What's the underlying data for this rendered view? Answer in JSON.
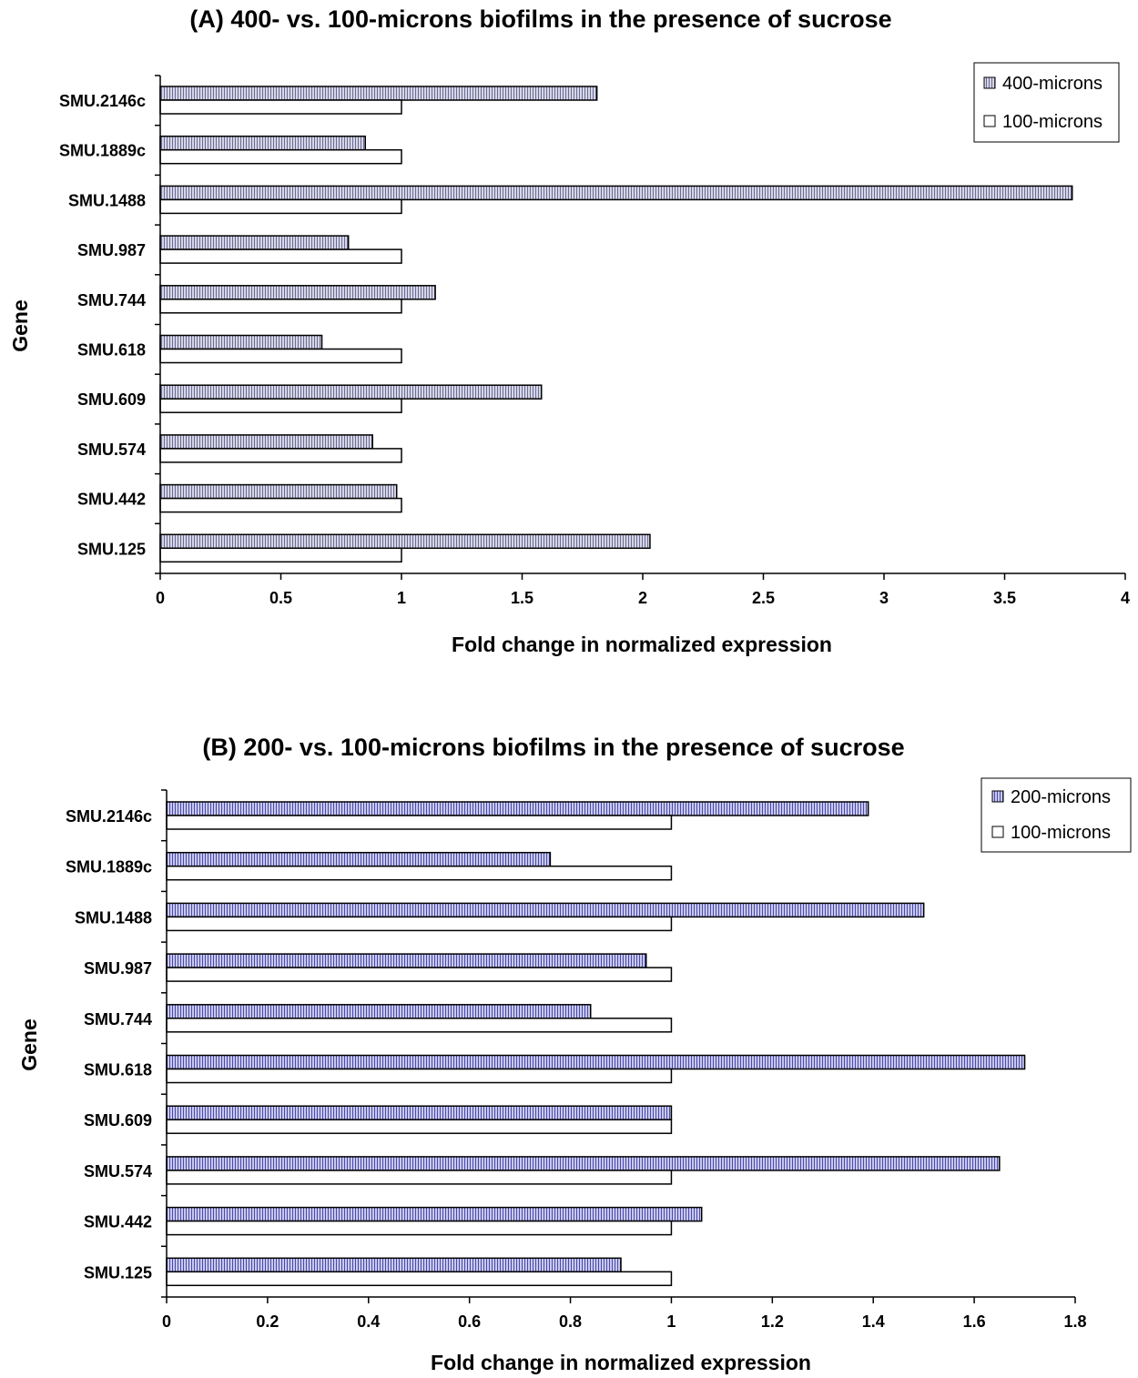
{
  "chart_data": [
    {
      "type": "bar",
      "orientation": "horizontal",
      "title": "(A) 400- vs. 100-microns biofilms in the presence of sucrose",
      "xlabel": "Fold change in normalized expression",
      "ylabel": "Gene",
      "xlim": [
        0,
        4
      ],
      "xticks": [
        "0",
        "0.5",
        "1",
        "1.5",
        "2",
        "2.5",
        "3",
        "3.5",
        "4"
      ],
      "grid": false,
      "legend_position": "top-right",
      "categories": [
        "SMU.2146c",
        "SMU.1889c",
        "SMU.1488",
        "SMU.987",
        "SMU.744",
        "SMU.618",
        "SMU.609",
        "SMU.574",
        "SMU.442",
        "SMU.125"
      ],
      "series": [
        {
          "name": "400-microns",
          "color": "#8a8ab0",
          "values": [
            1.81,
            0.85,
            3.78,
            0.78,
            1.14,
            0.67,
            1.58,
            0.88,
            0.98,
            2.03
          ]
        },
        {
          "name": "100-microns",
          "color": "#ffffff",
          "values": [
            1,
            1,
            1,
            1,
            1,
            1,
            1,
            1,
            1,
            1
          ]
        }
      ]
    },
    {
      "type": "bar",
      "orientation": "horizontal",
      "title": "(B) 200- vs. 100-microns biofilms in the presence of sucrose",
      "xlabel": "Fold change in normalized expression",
      "ylabel": "Gene",
      "xlim": [
        0,
        1.8
      ],
      "xticks": [
        "0",
        "0.2",
        "0.4",
        "0.6",
        "0.8",
        "1",
        "1.2",
        "1.4",
        "1.6",
        "1.8"
      ],
      "grid": false,
      "legend_position": "top-right",
      "categories": [
        "SMU.2146c",
        "SMU.1889c",
        "SMU.1488",
        "SMU.987",
        "SMU.744",
        "SMU.618",
        "SMU.609",
        "SMU.574",
        "SMU.442",
        "SMU.125"
      ],
      "series": [
        {
          "name": "200-microns",
          "color": "#6666cc",
          "values": [
            1.39,
            0.76,
            1.5,
            0.95,
            0.84,
            1.7,
            1.0,
            1.65,
            1.06,
            0.9
          ]
        },
        {
          "name": "100-microns",
          "color": "#ffffff",
          "values": [
            1,
            1,
            1,
            1,
            1,
            1,
            1,
            1,
            1,
            1
          ]
        }
      ]
    }
  ]
}
